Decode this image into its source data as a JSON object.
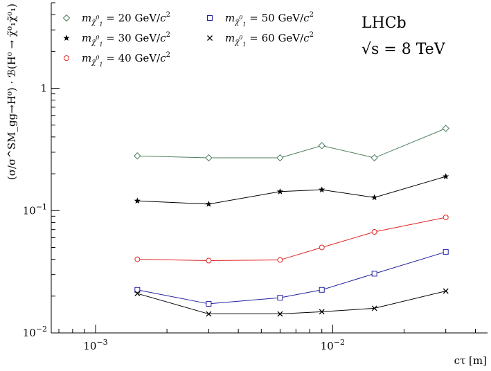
{
  "chart_data": {
    "type": "scatter",
    "x_scale": "log",
    "y_scale": "log",
    "xlim": [
      0.00065,
      0.045
    ],
    "ylim": [
      0.01,
      5.0
    ],
    "xlabel": "cτ [m]",
    "ylabel": "(σ/σ^SM_gg→H⁰) · ℬ(H⁰ → χ̃⁰₁χ̃⁰₁)",
    "x_ticks": [
      {
        "value": 0.001,
        "label": "10",
        "exp": "−3"
      },
      {
        "value": 0.01,
        "label": "10",
        "exp": "−2"
      }
    ],
    "y_ticks": [
      {
        "value": 0.01,
        "label": "10",
        "exp": "−2"
      },
      {
        "value": 0.1,
        "label": "10",
        "exp": "−1"
      },
      {
        "value": 1,
        "label": "1",
        "exp": ""
      }
    ],
    "experiment_label": [
      "LHCb",
      "√s = 8 TeV"
    ],
    "series": [
      {
        "name": "m_χ̃⁰₁ = 20 GeV/c²",
        "color": "#4a7d5a",
        "marker": "diamond",
        "x": [
          0.0015,
          0.003,
          0.006,
          0.009,
          0.015,
          0.03
        ],
        "y": [
          0.28,
          0.27,
          0.27,
          0.34,
          0.27,
          0.47
        ]
      },
      {
        "name": "m_χ̃⁰₁ = 30 GeV/c²",
        "color": "#000000",
        "marker": "star",
        "x": [
          0.0015,
          0.003,
          0.006,
          0.009,
          0.015,
          0.03
        ],
        "y": [
          0.12,
          0.113,
          0.143,
          0.148,
          0.128,
          0.19
        ]
      },
      {
        "name": "m_χ̃⁰₁ = 40 GeV/c²",
        "color": "#e02020",
        "marker": "circle",
        "x": [
          0.0015,
          0.003,
          0.006,
          0.009,
          0.015,
          0.03
        ],
        "y": [
          0.04,
          0.039,
          0.0395,
          0.05,
          0.067,
          0.088
        ]
      },
      {
        "name": "m_χ̃⁰₁ = 50 GeV/c²",
        "color": "#2020a0",
        "marker": "square",
        "x": [
          0.0015,
          0.003,
          0.006,
          0.009,
          0.015,
          0.03
        ],
        "y": [
          0.0225,
          0.0173,
          0.0194,
          0.0225,
          0.0305,
          0.046
        ]
      },
      {
        "name": "m_χ̃⁰₁ = 60 GeV/c²",
        "color": "#000000",
        "marker": "cross",
        "x": [
          0.0015,
          0.003,
          0.006,
          0.009,
          0.015,
          0.03
        ],
        "y": [
          0.021,
          0.0143,
          0.0143,
          0.0149,
          0.0159,
          0.022
        ]
      }
    ],
    "legend": {
      "placement": "top-left",
      "entries": [
        {
          "prefix": "m",
          "sub": "χ̃",
          "subsup": "0",
          "subsub": "1",
          "text": " = 20 GeV/",
          "c": "c",
          "csup": "2"
        },
        {
          "prefix": "m",
          "sub": "χ̃",
          "subsup": "0",
          "subsub": "1",
          "text": " = 30 GeV/",
          "c": "c",
          "csup": "2"
        },
        {
          "prefix": "m",
          "sub": "χ̃",
          "subsup": "0",
          "subsub": "1",
          "text": " = 40 GeV/",
          "c": "c",
          "csup": "2"
        },
        {
          "prefix": "m",
          "sub": "χ̃",
          "subsup": "0",
          "subsub": "1",
          "text": " = 50 GeV/",
          "c": "c",
          "csup": "2"
        },
        {
          "prefix": "m",
          "sub": "χ̃",
          "subsup": "0",
          "subsub": "1",
          "text": " = 60 GeV/",
          "c": "c",
          "csup": "2"
        }
      ]
    },
    "grid": false
  }
}
